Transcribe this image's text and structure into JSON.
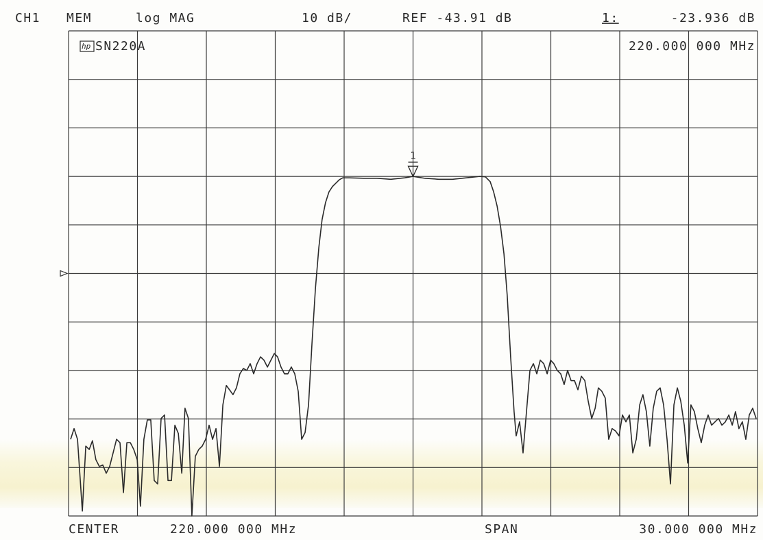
{
  "chart_data": {
    "type": "line",
    "header": {
      "channel": "CH1",
      "memory": "MEM",
      "format": "log MAG",
      "scale": "10 dB/",
      "reference": "REF -43.91 dB",
      "marker_number": "1:",
      "marker_readout": "-23.936 dB"
    },
    "logo": "hp",
    "title": "SN220A",
    "marker_frequency_label": "220.000 000 MHz",
    "center_title": "CENTER",
    "center_label": "220.000 000 MHz",
    "span_title": "SPAN",
    "span_label": "30.000 000 MHz",
    "marker": {
      "label": "1",
      "x": 220,
      "y": -23.936
    },
    "ref_level": -43.91,
    "xlim": [
      205,
      235
    ],
    "xticks": [
      205,
      208,
      211,
      214,
      217,
      220,
      223,
      226,
      229,
      232,
      235
    ],
    "ylim": [
      -93.91,
      6.09
    ],
    "yticks": [
      -93.91,
      -83.91,
      -73.91,
      -63.91,
      -53.91,
      -43.91,
      -33.91,
      -23.91,
      -13.91,
      -3.91,
      6.09
    ],
    "grid": true,
    "series": [
      {
        "color": "#2b2b2b",
        "x": [
          205.09,
          205.24,
          205.39,
          205.6,
          205.75,
          205.9,
          206.04,
          206.19,
          206.34,
          206.49,
          206.64,
          206.79,
          206.94,
          207.09,
          207.24,
          207.39,
          207.54,
          207.69,
          207.84,
          207.99,
          208.13,
          208.28,
          208.43,
          208.58,
          208.73,
          208.88,
          209.03,
          209.18,
          209.33,
          209.48,
          209.63,
          209.78,
          209.93,
          210.07,
          210.22,
          210.37,
          210.52,
          210.67,
          210.82,
          210.97,
          211.12,
          211.27,
          211.42,
          211.57,
          211.72,
          211.87,
          212.01,
          212.16,
          212.31,
          212.46,
          212.61,
          212.76,
          212.91,
          213.06,
          213.21,
          213.36,
          213.51,
          213.66,
          213.81,
          213.96,
          214.1,
          214.25,
          214.4,
          214.55,
          214.7,
          214.85,
          215.0,
          215.15,
          215.3,
          215.45,
          215.6,
          215.75,
          215.9,
          216.04,
          216.19,
          216.34,
          216.49,
          216.64,
          216.79,
          216.94,
          217.24,
          217.84,
          218.43,
          219.03,
          219.63,
          220.0,
          220.52,
          221.12,
          221.72,
          222.31,
          222.91,
          223.15,
          223.36,
          223.51,
          223.66,
          223.81,
          223.96,
          224.1,
          224.25,
          224.4,
          224.49,
          224.64,
          224.79,
          224.94,
          225.09,
          225.24,
          225.39,
          225.54,
          225.69,
          225.84,
          225.99,
          226.13,
          226.28,
          226.43,
          226.58,
          226.73,
          226.88,
          227.03,
          227.18,
          227.33,
          227.48,
          227.63,
          227.78,
          227.93,
          228.07,
          228.22,
          228.37,
          228.52,
          228.67,
          228.82,
          228.97,
          229.12,
          229.27,
          229.42,
          229.57,
          229.72,
          229.87,
          230.01,
          230.16,
          230.31,
          230.46,
          230.61,
          230.76,
          230.91,
          231.06,
          231.21,
          231.36,
          231.51,
          231.66,
          231.81,
          231.96,
          232.1,
          232.25,
          232.4,
          232.55,
          232.7,
          232.85,
          233.0,
          233.15,
          233.3,
          233.45,
          233.6,
          233.75,
          233.9,
          234.04,
          234.19,
          234.34,
          234.49,
          234.64,
          234.79,
          234.94
        ],
        "values": [
          -78.1,
          -75.9,
          -78.1,
          -92.9,
          -79.5,
          -80.2,
          -78.4,
          -82.3,
          -83.7,
          -83.4,
          -85.1,
          -83.7,
          -80.9,
          -78.1,
          -78.8,
          -89.1,
          -78.8,
          -78.8,
          -80.2,
          -82.3,
          -91.9,
          -78.1,
          -74.1,
          -74.1,
          -86.6,
          -87.3,
          -73.8,
          -73.1,
          -86.6,
          -86.6,
          -75.2,
          -76.9,
          -85.1,
          -71.7,
          -73.8,
          -93.9,
          -81.6,
          -80.2,
          -79.5,
          -78.1,
          -75.2,
          -78.1,
          -75.9,
          -83.7,
          -71.0,
          -67.0,
          -67.9,
          -68.9,
          -67.5,
          -64.6,
          -63.5,
          -63.9,
          -62.5,
          -64.6,
          -62.5,
          -61.1,
          -61.8,
          -63.2,
          -61.8,
          -60.4,
          -61.1,
          -63.2,
          -64.6,
          -64.6,
          -63.2,
          -64.6,
          -68.2,
          -78.1,
          -76.7,
          -71.0,
          -58.3,
          -47.0,
          -38.5,
          -32.8,
          -29.3,
          -27.1,
          -26.0,
          -25.3,
          -24.6,
          -24.2,
          -24.2,
          -24.3,
          -24.3,
          -24.5,
          -24.2,
          -23.9,
          -24.3,
          -24.5,
          -24.5,
          -24.2,
          -23.9,
          -24.0,
          -25.0,
          -27.1,
          -30.0,
          -34.2,
          -39.9,
          -48.4,
          -61.1,
          -72.4,
          -77.4,
          -74.5,
          -80.9,
          -72.4,
          -63.9,
          -62.5,
          -64.6,
          -61.8,
          -62.5,
          -64.6,
          -61.8,
          -62.5,
          -63.9,
          -64.6,
          -66.8,
          -63.9,
          -66.0,
          -66.0,
          -67.9,
          -65.1,
          -66.0,
          -70.3,
          -73.8,
          -71.7,
          -67.5,
          -68.2,
          -69.6,
          -78.1,
          -75.9,
          -76.4,
          -77.4,
          -73.1,
          -74.5,
          -73.1,
          -80.9,
          -78.1,
          -71.0,
          -68.9,
          -72.4,
          -79.5,
          -71.7,
          -68.2,
          -67.5,
          -71.0,
          -78.1,
          -87.3,
          -71.0,
          -67.5,
          -70.3,
          -75.2,
          -83.0,
          -71.0,
          -72.4,
          -75.9,
          -78.8,
          -75.2,
          -73.1,
          -75.2,
          -74.5,
          -73.8,
          -75.2,
          -74.5,
          -73.1,
          -75.2,
          -72.4,
          -75.9,
          -74.5,
          -78.1,
          -73.1,
          -71.7,
          -73.8
        ]
      }
    ]
  }
}
